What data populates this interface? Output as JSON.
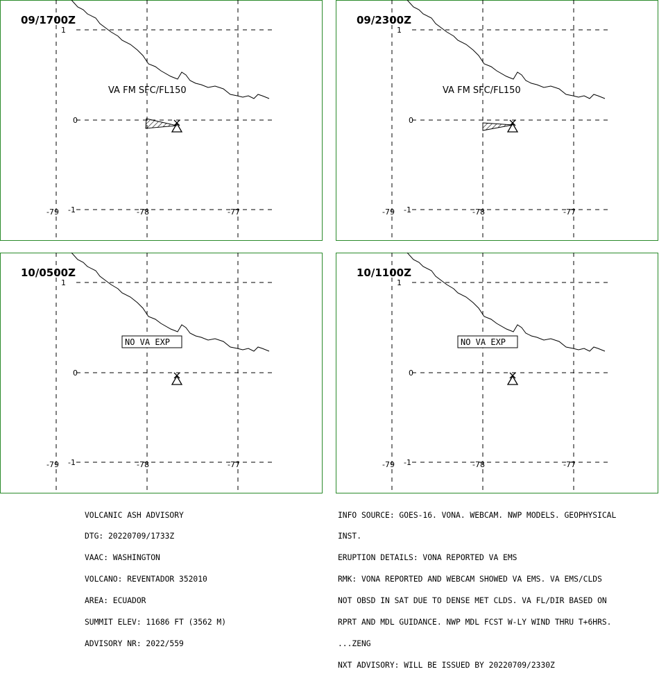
{
  "panels": [
    {
      "time": "09/1700Z",
      "label": "VA FM SFC/FL150",
      "ash": true
    },
    {
      "time": "09/2300Z",
      "label": "VA FM SFC/FL150",
      "ash": true
    },
    {
      "time": "10/0500Z",
      "label": "NO VA EXP",
      "ash": false
    },
    {
      "time": "10/1100Z",
      "label": "NO VA EXP",
      "ash": false
    }
  ],
  "axis_labels": {
    "lon": [
      "-79",
      "-78",
      "-77"
    ],
    "lat": [
      "1",
      "0",
      "-1"
    ]
  },
  "advisory_left": [
    "VOLCANIC ASH ADVISORY",
    "DTG: 20220709/1733Z",
    "VAAC: WASHINGTON",
    "VOLCANO: REVENTADOR 352010",
    "AREA: ECUADOR",
    "SUMMIT ELEV: 11686 FT (3562 M)",
    "ADVISORY NR: 2022/559"
  ],
  "advisory_right": [
    "INFO SOURCE: GOES-16. VONA. WEBCAM. NWP MODELS. GEOPHYSICAL",
    "INST.",
    "ERUPTION DETAILS: VONA REPORTED VA EMS",
    "RMK: VONA REPORTED AND WEBCAM SHOWED VA EMS. VA EMS/CLDS",
    "NOT OBSD IN SAT DUE TO DENSE MET CLDS. VA FL/DIR BASED ON",
    "RPRT AND MDL GUIDANCE. NWP MDL FCST W-LY WIND THRU T+6HRS.",
    "...ZENG",
    "NXT ADVISORY: WILL BE ISSUED BY 20220709/2330Z"
  ],
  "colors": {
    "frame": "#2a8a2a"
  }
}
